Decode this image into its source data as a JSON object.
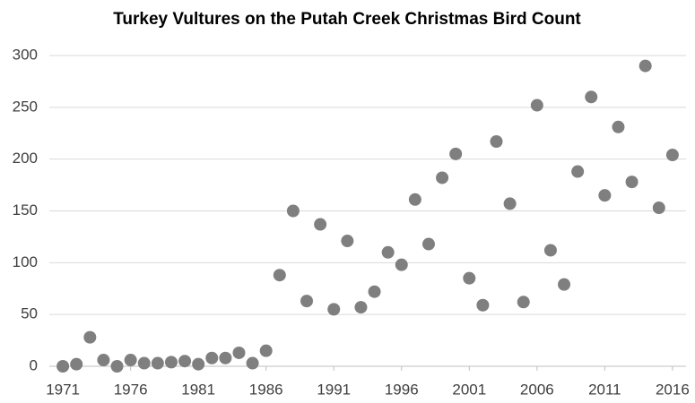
{
  "chart_data": {
    "type": "scatter",
    "title": "Turkey Vultures on the Putah Creek Christmas Bird Count",
    "x": [
      1971,
      1972,
      1973,
      1974,
      1975,
      1976,
      1977,
      1978,
      1979,
      1980,
      1981,
      1982,
      1983,
      1984,
      1985,
      1986,
      1987,
      1988,
      1989,
      1990,
      1991,
      1992,
      1993,
      1994,
      1995,
      1996,
      1997,
      1998,
      1999,
      2000,
      2001,
      2002,
      2003,
      2004,
      2005,
      2006,
      2007,
      2008,
      2009,
      2010,
      2011,
      2012,
      2013,
      2014,
      2015,
      2016
    ],
    "values": [
      0,
      2,
      28,
      6,
      0,
      6,
      3,
      3,
      4,
      5,
      2,
      8,
      8,
      13,
      3,
      15,
      88,
      150,
      63,
      137,
      55,
      121,
      57,
      72,
      110,
      98,
      161,
      118,
      182,
      205,
      85,
      59,
      217,
      157,
      62,
      252,
      112,
      79,
      188,
      260,
      165,
      231,
      178,
      290,
      153,
      204
    ],
    "color": "#7f7f7f",
    "xlim": [
      1970,
      2017
    ],
    "xticks": [
      1971,
      1976,
      1981,
      1986,
      1991,
      1996,
      2001,
      2006,
      2011,
      2016
    ],
    "ylim": [
      0,
      300
    ],
    "yticks": [
      0,
      50,
      100,
      150,
      200,
      250,
      300
    ],
    "grid": true
  }
}
